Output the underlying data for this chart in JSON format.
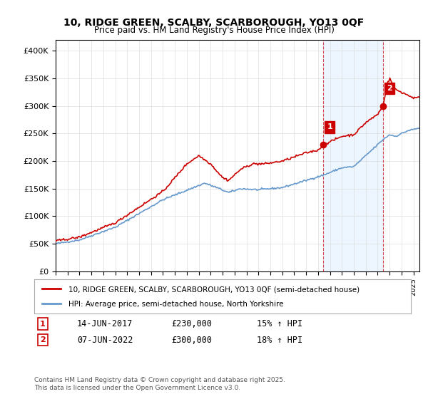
{
  "title_line1": "10, RIDGE GREEN, SCALBY, SCARBOROUGH, YO13 0QF",
  "title_line2": "Price paid vs. HM Land Registry's House Price Index (HPI)",
  "legend_line1": "10, RIDGE GREEN, SCALBY, SCARBOROUGH, YO13 0QF (semi-detached house)",
  "legend_line2": "HPI: Average price, semi-detached house, North Yorkshire",
  "annotation1_date": "14-JUN-2017",
  "annotation1_price": "£230,000",
  "annotation1_hpi": "15% ↑ HPI",
  "annotation2_date": "07-JUN-2022",
  "annotation2_price": "£300,000",
  "annotation2_hpi": "18% ↑ HPI",
  "footnote": "Contains HM Land Registry data © Crown copyright and database right 2025.\nThis data is licensed under the Open Government Licence v3.0.",
  "ylim": [
    0,
    420000
  ],
  "yticks": [
    0,
    50000,
    100000,
    150000,
    200000,
    250000,
    300000,
    350000,
    400000
  ],
  "sale1_year": 2017.45,
  "sale1_price": 230000,
  "sale2_year": 2022.44,
  "sale2_price": 300000,
  "red_color": "#cc0000",
  "blue_color": "#6699cc",
  "vline_color": "#cc0000",
  "background_color": "#ffffff",
  "grid_color": "#dddddd"
}
